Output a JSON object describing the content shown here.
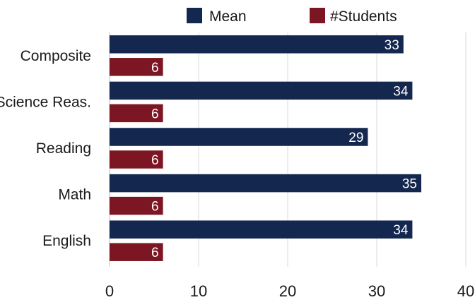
{
  "legend": [
    {
      "name": "Mean",
      "color": "#14274e"
    },
    {
      "name": "#Students",
      "color": "#7d1623"
    }
  ],
  "chart_data": {
    "type": "bar",
    "orientation": "horizontal",
    "categories": [
      "Composite",
      "Science Reas.",
      "Reading",
      "Math",
      "English"
    ],
    "series": [
      {
        "name": "Mean",
        "values": [
          33,
          34,
          29,
          35,
          34
        ],
        "color": "#14274e"
      },
      {
        "name": "#Students",
        "values": [
          6,
          6,
          6,
          6,
          6
        ],
        "color": "#7d1623"
      }
    ],
    "xticks": [
      0,
      10,
      20,
      30,
      40
    ],
    "xlim": [
      0,
      40
    ],
    "grid": "vertical",
    "legend_position": "top"
  }
}
